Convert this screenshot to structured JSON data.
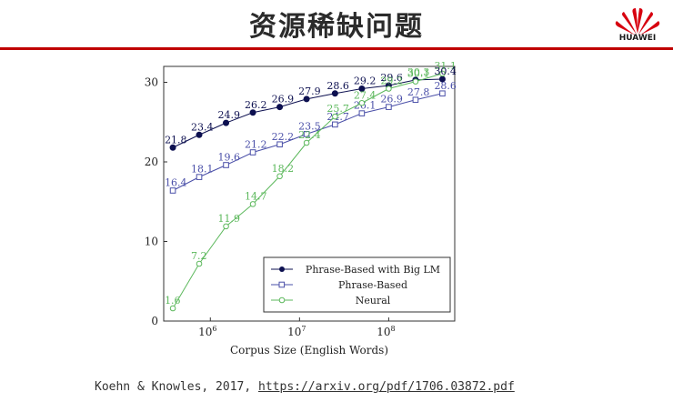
{
  "slide": {
    "title": "资源稀缺问题",
    "logo_text": "HUAWEI",
    "citation_text": "Koehn & Knowles, 2017, ",
    "citation_link": "https://arxiv.org/pdf/1706.03872.pdf"
  },
  "colors": {
    "accent": "#c00000",
    "big_lm": "#0d1050",
    "phrase": "#4a4fa8",
    "neural": "#5cb85c"
  },
  "chart_data": {
    "type": "line",
    "title": "",
    "xlabel": "Corpus Size (English Words)",
    "ylabel": "",
    "xscale": "log",
    "xlim": [
      300000,
      550000000
    ],
    "ylim": [
      0,
      32
    ],
    "xticks": [
      {
        "value": 1000000,
        "base": "10",
        "exp": "6"
      },
      {
        "value": 10000000,
        "base": "10",
        "exp": "7"
      },
      {
        "value": 100000000,
        "base": "10",
        "exp": "8"
      }
    ],
    "yticks": [
      0,
      10,
      20,
      30
    ],
    "legend_position": "bottom-right",
    "x": [
      380000,
      750000,
      1500000,
      3000000,
      6000000,
      12000000,
      25000000,
      50000000,
      100000000,
      200000000,
      400000000
    ],
    "series": [
      {
        "name": "Phrase-Based with Big LM",
        "marker": "filled-circle",
        "values": [
          21.8,
          23.4,
          24.9,
          26.2,
          26.9,
          27.9,
          28.6,
          29.2,
          29.6,
          30.3,
          30.4
        ],
        "labels": [
          "21.8",
          "23.4",
          "24.9",
          "26.2",
          "26.9",
          "27.9",
          "28.6",
          "29.2",
          "29.6",
          "",
          ""
        ]
      },
      {
        "name": "Phrase-Based",
        "marker": "square",
        "values": [
          16.4,
          18.1,
          19.6,
          21.2,
          22.2,
          23.5,
          24.7,
          26.1,
          26.9,
          27.8,
          28.6
        ],
        "labels": [
          "16.4",
          "18.1",
          "19.6",
          "21.2",
          "22.2",
          "23.5",
          "24.7",
          "26.1",
          "26.9",
          "27.8",
          "28.6"
        ]
      },
      {
        "name": "Neural",
        "marker": "circle",
        "values": [
          1.6,
          7.2,
          11.9,
          14.7,
          18.2,
          22.4,
          25.7,
          27.4,
          29.2,
          30.1,
          31.1
        ],
        "labels": [
          "1.6",
          "7.2",
          "11.9",
          "14.7",
          "18.2",
          "22.4",
          "25.7",
          "27.4",
          "29.2",
          "30.1",
          "31.1"
        ]
      }
    ],
    "extra_labels": [
      {
        "x": 200000000,
        "y": 30.3,
        "text": "30.3",
        "series": 2
      },
      {
        "x": 400000000,
        "y": 30.4,
        "text": "30.4",
        "series": 0
      }
    ]
  }
}
